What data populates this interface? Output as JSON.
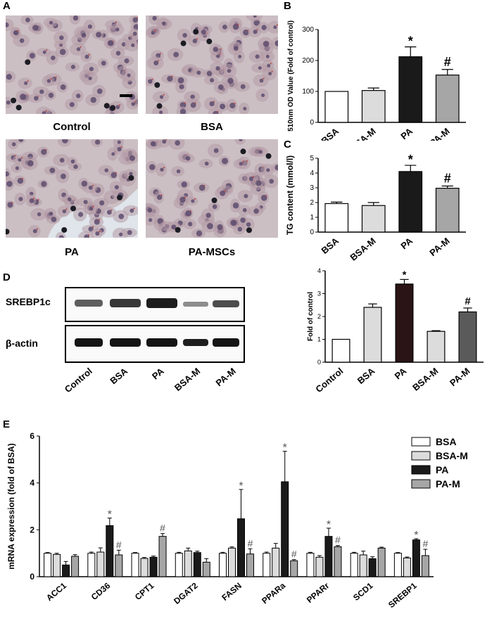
{
  "panels": {
    "A": {
      "letter": "A",
      "images": [
        {
          "label": "Control"
        },
        {
          "label": "BSA"
        },
        {
          "label": "PA"
        },
        {
          "label": "PA-MSCs"
        }
      ]
    },
    "B": {
      "letter": "B"
    },
    "C": {
      "letter": "C"
    },
    "D": {
      "letter": "D",
      "blot_labels": [
        "SREBP1c",
        "β-actin"
      ],
      "lanes": [
        "Control",
        "BSA",
        "PA",
        "BSA-M",
        "PA-M"
      ]
    },
    "E": {
      "letter": "E"
    }
  },
  "colors": {
    "white": "#ffffff",
    "light_gray": "#dcdcdc",
    "black": "#1a1a1a",
    "mid_gray": "#a6a6a6",
    "dark_red": "#2a1416",
    "dark_gray": "#5a5a5a"
  },
  "chart_data": [
    {
      "id": "B",
      "type": "bar",
      "categories": [
        "BSA",
        "BSA-M",
        "PA",
        "PA-M"
      ],
      "values": [
        100,
        103,
        212,
        153
      ],
      "errors": [
        0,
        8,
        32,
        18
      ],
      "annotations": [
        "",
        "",
        "*",
        "#"
      ],
      "ylabel": "510nm OD Value (Fold of control)",
      "ylim": [
        0,
        300
      ],
      "yticks": [
        0,
        100,
        200,
        300
      ]
    },
    {
      "id": "C",
      "type": "bar",
      "categories": [
        "BSA",
        "BSA-M",
        "PA",
        "PA-M"
      ],
      "values": [
        1.93,
        1.8,
        4.1,
        2.97
      ],
      "errors": [
        0.1,
        0.2,
        0.42,
        0.15
      ],
      "annotations": [
        "",
        "",
        "*",
        "#"
      ],
      "ylabel": "TG content (mmol/l)",
      "ylim": [
        0,
        5
      ],
      "yticks": [
        0,
        1,
        2,
        3,
        4,
        5
      ]
    },
    {
      "id": "D",
      "type": "bar",
      "categories": [
        "Control",
        "BSA",
        "PA",
        "BSA-M",
        "PA-M"
      ],
      "values": [
        1.0,
        2.4,
        3.42,
        1.35,
        2.2
      ],
      "errors": [
        0,
        0.15,
        0.2,
        0.03,
        0.17
      ],
      "annotations": [
        "",
        "",
        "*",
        "",
        "#"
      ],
      "ylabel": "Fold of control",
      "ylim": [
        0,
        4
      ],
      "yticks": [
        0,
        1,
        2,
        3,
        4
      ]
    },
    {
      "id": "E",
      "type": "bar",
      "categories": [
        "ACC1",
        "CD36",
        "CPT1",
        "DGAT2",
        "FASN",
        "PPARa",
        "PPARr",
        "SCD1",
        "SREBP1"
      ],
      "series": [
        {
          "name": "BSA",
          "values": [
            1.0,
            1.0,
            1.0,
            1.0,
            1.0,
            1.0,
            1.0,
            1.0,
            1.0
          ],
          "errors": [
            0.03,
            0.05,
            0.03,
            0.04,
            0.04,
            0.05,
            0.04,
            0.04,
            0.03
          ]
        },
        {
          "name": "BSA-M",
          "values": [
            0.95,
            1.05,
            0.78,
            1.1,
            1.22,
            1.22,
            0.83,
            0.93,
            0.8
          ],
          "errors": [
            0.05,
            0.18,
            0.04,
            0.12,
            0.05,
            0.2,
            0.07,
            0.16,
            0.04
          ]
        },
        {
          "name": "PA",
          "values": [
            0.5,
            2.18,
            0.83,
            1.03,
            2.47,
            4.05,
            1.72,
            0.77,
            1.57
          ],
          "errors": [
            0.15,
            0.32,
            0.05,
            0.06,
            1.25,
            1.3,
            0.35,
            0.08,
            0.05
          ]
        },
        {
          "name": "PA-M",
          "values": [
            0.87,
            0.93,
            1.72,
            0.62,
            0.97,
            0.68,
            1.28,
            1.22,
            0.9
          ],
          "errors": [
            0.07,
            0.2,
            0.12,
            0.15,
            0.22,
            0.05,
            0.05,
            0.04,
            0.27
          ]
        }
      ],
      "annotations": {
        "PA": [
          "",
          "*",
          "",
          "",
          "*",
          "*",
          "*",
          "",
          "*"
        ],
        "PA-M": [
          "",
          "#",
          "#",
          "",
          "#",
          "#",
          "#",
          "",
          "#"
        ]
      },
      "ylabel": "mRNA expression (fold of BSA)",
      "ylim": [
        0,
        6
      ],
      "yticks": [
        0,
        2,
        4,
        6
      ],
      "legend_position": "top-right"
    }
  ]
}
